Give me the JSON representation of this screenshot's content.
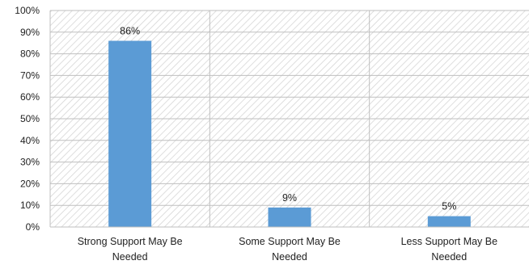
{
  "chart_data": {
    "type": "bar",
    "categories": [
      [
        "Strong Support May Be",
        "Needed"
      ],
      [
        "Some Support May Be",
        "Needed"
      ],
      [
        "Less Support May Be",
        "Needed"
      ]
    ],
    "values": [
      86,
      9,
      5
    ],
    "data_labels": [
      "86%",
      "9%",
      "5%"
    ],
    "ylim": [
      0,
      100
    ],
    "yticks": [
      0,
      10,
      20,
      30,
      40,
      50,
      60,
      70,
      80,
      90,
      100
    ],
    "ytick_labels": [
      "0%",
      "10%",
      "20%",
      "30%",
      "40%",
      "50%",
      "60%",
      "70%",
      "80%",
      "90%",
      "100%"
    ],
    "grid": true,
    "legend": "none",
    "colors": {
      "bar": "#5b9bd5",
      "plot_hatch": "#d6d6d6",
      "grid_line": "#bfbfbf",
      "axis_line": "#bfbfbf"
    }
  }
}
